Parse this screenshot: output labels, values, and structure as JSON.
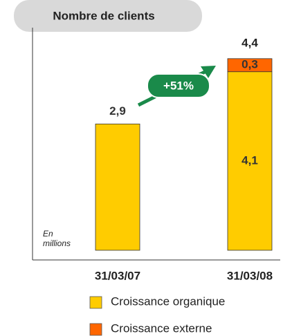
{
  "chart_data": {
    "type": "stacked_bar",
    "title": "Nombre de clients",
    "subtitle": "En millions",
    "categories": [
      "31/03/07",
      "31/03/08"
    ],
    "series": [
      {
        "name": "Croissance organique",
        "color": "#ffcc00",
        "values": [
          2.9,
          4.1
        ],
        "value_labels": [
          "2,9",
          "4,1"
        ]
      },
      {
        "name": "Croissance externe",
        "color": "#ff6600",
        "values": [
          null,
          0.3
        ],
        "value_labels": [
          null,
          "0,3"
        ]
      }
    ],
    "totals": [
      null,
      4.4
    ],
    "total_labels": [
      null,
      "4,4"
    ],
    "annotation": "+51%"
  }
}
